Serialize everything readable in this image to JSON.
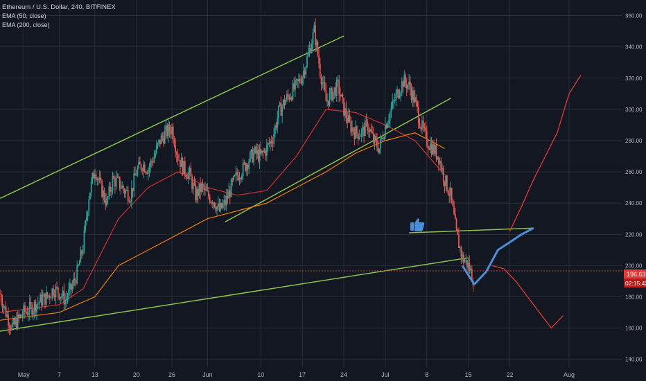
{
  "header": {
    "title": "Ethereum / U.S. Dollar, 240, BITFINEX",
    "indicators": [
      "EMA (50, close)",
      "EMA (200, close)"
    ]
  },
  "price_badges": {
    "last_price": "196.63",
    "countdown": "02:15:42"
  },
  "colors": {
    "background": "#131722",
    "grid": "#2a2e39",
    "axis_text": "#b2b5be",
    "up_candle": "#26a69a",
    "down_candle": "#ef5350",
    "ema50": "#d32f2f",
    "ema200": "#f57c00",
    "trendline": "#8bc34a",
    "projection_red": "#e53935",
    "projection_blue": "#4a90d9",
    "badge": "#e53935"
  },
  "icons": [
    "thumbs-up-icon"
  ],
  "chart_data": {
    "type": "candlestick",
    "title": "Ethereum / U.S. Dollar, 240, BITFINEX",
    "ylim": [
      135,
      370
    ],
    "grid": true,
    "y_ticks": [
      140,
      160,
      180,
      200,
      220,
      240,
      260,
      280,
      300,
      320,
      340,
      360
    ],
    "y_tick_labels": [
      "140.00",
      "160.00",
      "180.00",
      "200.00",
      "220.00",
      "240.00",
      "260.00",
      "280.00",
      "300.00",
      "320.00",
      "340.00",
      "360.00"
    ],
    "x_tick_labels": [
      "May",
      "7",
      "13",
      "20",
      "26",
      "Jun",
      "10",
      "17",
      "24",
      "Jul",
      "8",
      "15",
      "22",
      "Aug"
    ],
    "x_day_index": [
      4,
      10,
      16,
      23,
      29,
      35,
      44,
      51,
      58,
      65,
      72,
      79,
      86,
      96
    ],
    "x_range_days": [
      0,
      105
    ],
    "last_price": 196.63,
    "price_path": {
      "days": [
        0,
        1,
        2,
        3,
        4,
        5,
        6,
        7,
        8,
        9,
        10,
        11,
        12,
        13,
        14,
        15,
        16,
        17,
        18,
        19,
        20,
        21,
        22,
        23,
        24,
        25,
        26,
        27,
        28,
        29,
        30,
        31,
        32,
        33,
        34,
        35,
        36,
        37,
        38,
        39,
        40,
        41,
        42,
        43,
        44,
        45,
        46,
        47,
        48,
        49,
        50,
        51,
        52,
        53,
        54,
        55,
        56,
        57,
        58,
        59,
        60,
        61,
        62,
        63,
        64,
        65,
        66,
        67,
        68,
        69,
        70,
        71,
        72,
        73,
        74,
        75,
        76,
        77,
        78,
        79,
        80
      ],
      "prices": [
        182,
        170,
        160,
        165,
        170,
        172,
        175,
        178,
        180,
        185,
        183,
        178,
        185,
        195,
        212,
        245,
        262,
        250,
        240,
        255,
        253,
        248,
        245,
        260,
        265,
        262,
        270,
        280,
        285,
        288,
        270,
        262,
        258,
        245,
        250,
        245,
        242,
        235,
        240,
        250,
        258,
        262,
        268,
        272,
        270,
        275,
        282,
        298,
        305,
        310,
        315,
        322,
        335,
        350,
        325,
        305,
        310,
        315,
        300,
        290,
        285,
        285,
        290,
        280,
        275,
        290,
        300,
        310,
        318,
        315,
        305,
        290,
        280,
        275,
        270,
        255,
        245,
        220,
        205,
        200,
        190
      ],
      "ohlc_note": "approximate close path read from candles"
    },
    "series": [
      {
        "name": "EMA (50, close)",
        "days": [
          0,
          10,
          14,
          20,
          25,
          30,
          35,
          40,
          45,
          50,
          55,
          60,
          65,
          70,
          75
        ],
        "values": [
          170,
          175,
          185,
          230,
          250,
          260,
          250,
          245,
          248,
          270,
          300,
          298,
          290,
          280,
          258
        ]
      },
      {
        "name": "EMA (200, close)",
        "days": [
          0,
          10,
          16,
          20,
          25,
          30,
          35,
          40,
          45,
          50,
          55,
          60,
          65,
          70,
          75
        ],
        "values": [
          165,
          170,
          180,
          200,
          210,
          220,
          230,
          235,
          240,
          250,
          260,
          272,
          280,
          285,
          275
        ]
      }
    ],
    "trendlines": [
      {
        "from": [
          0,
          243
        ],
        "to": [
          58,
          347
        ]
      },
      {
        "from": [
          0,
          158
        ],
        "to": [
          79,
          205
        ]
      },
      {
        "from": [
          38,
          228
        ],
        "to": [
          76,
          307
        ]
      },
      {
        "from": [
          69,
          221
        ],
        "to": [
          90,
          224
        ]
      }
    ],
    "projection_red_down": {
      "days": [
        83,
        85,
        87,
        89,
        91,
        93,
        95
      ],
      "values": [
        200,
        198,
        190,
        180,
        170,
        160,
        168
      ]
    },
    "projection_red_up": {
      "days": [
        86,
        88,
        90,
        92,
        94,
        96,
        98
      ],
      "values": [
        222,
        238,
        255,
        270,
        285,
        310,
        322
      ]
    },
    "projection_blue": {
      "days": [
        78,
        80,
        82,
        84,
        86,
        88,
        90
      ],
      "values": [
        200,
        188,
        196,
        210,
        215,
        220,
        224
      ]
    }
  }
}
